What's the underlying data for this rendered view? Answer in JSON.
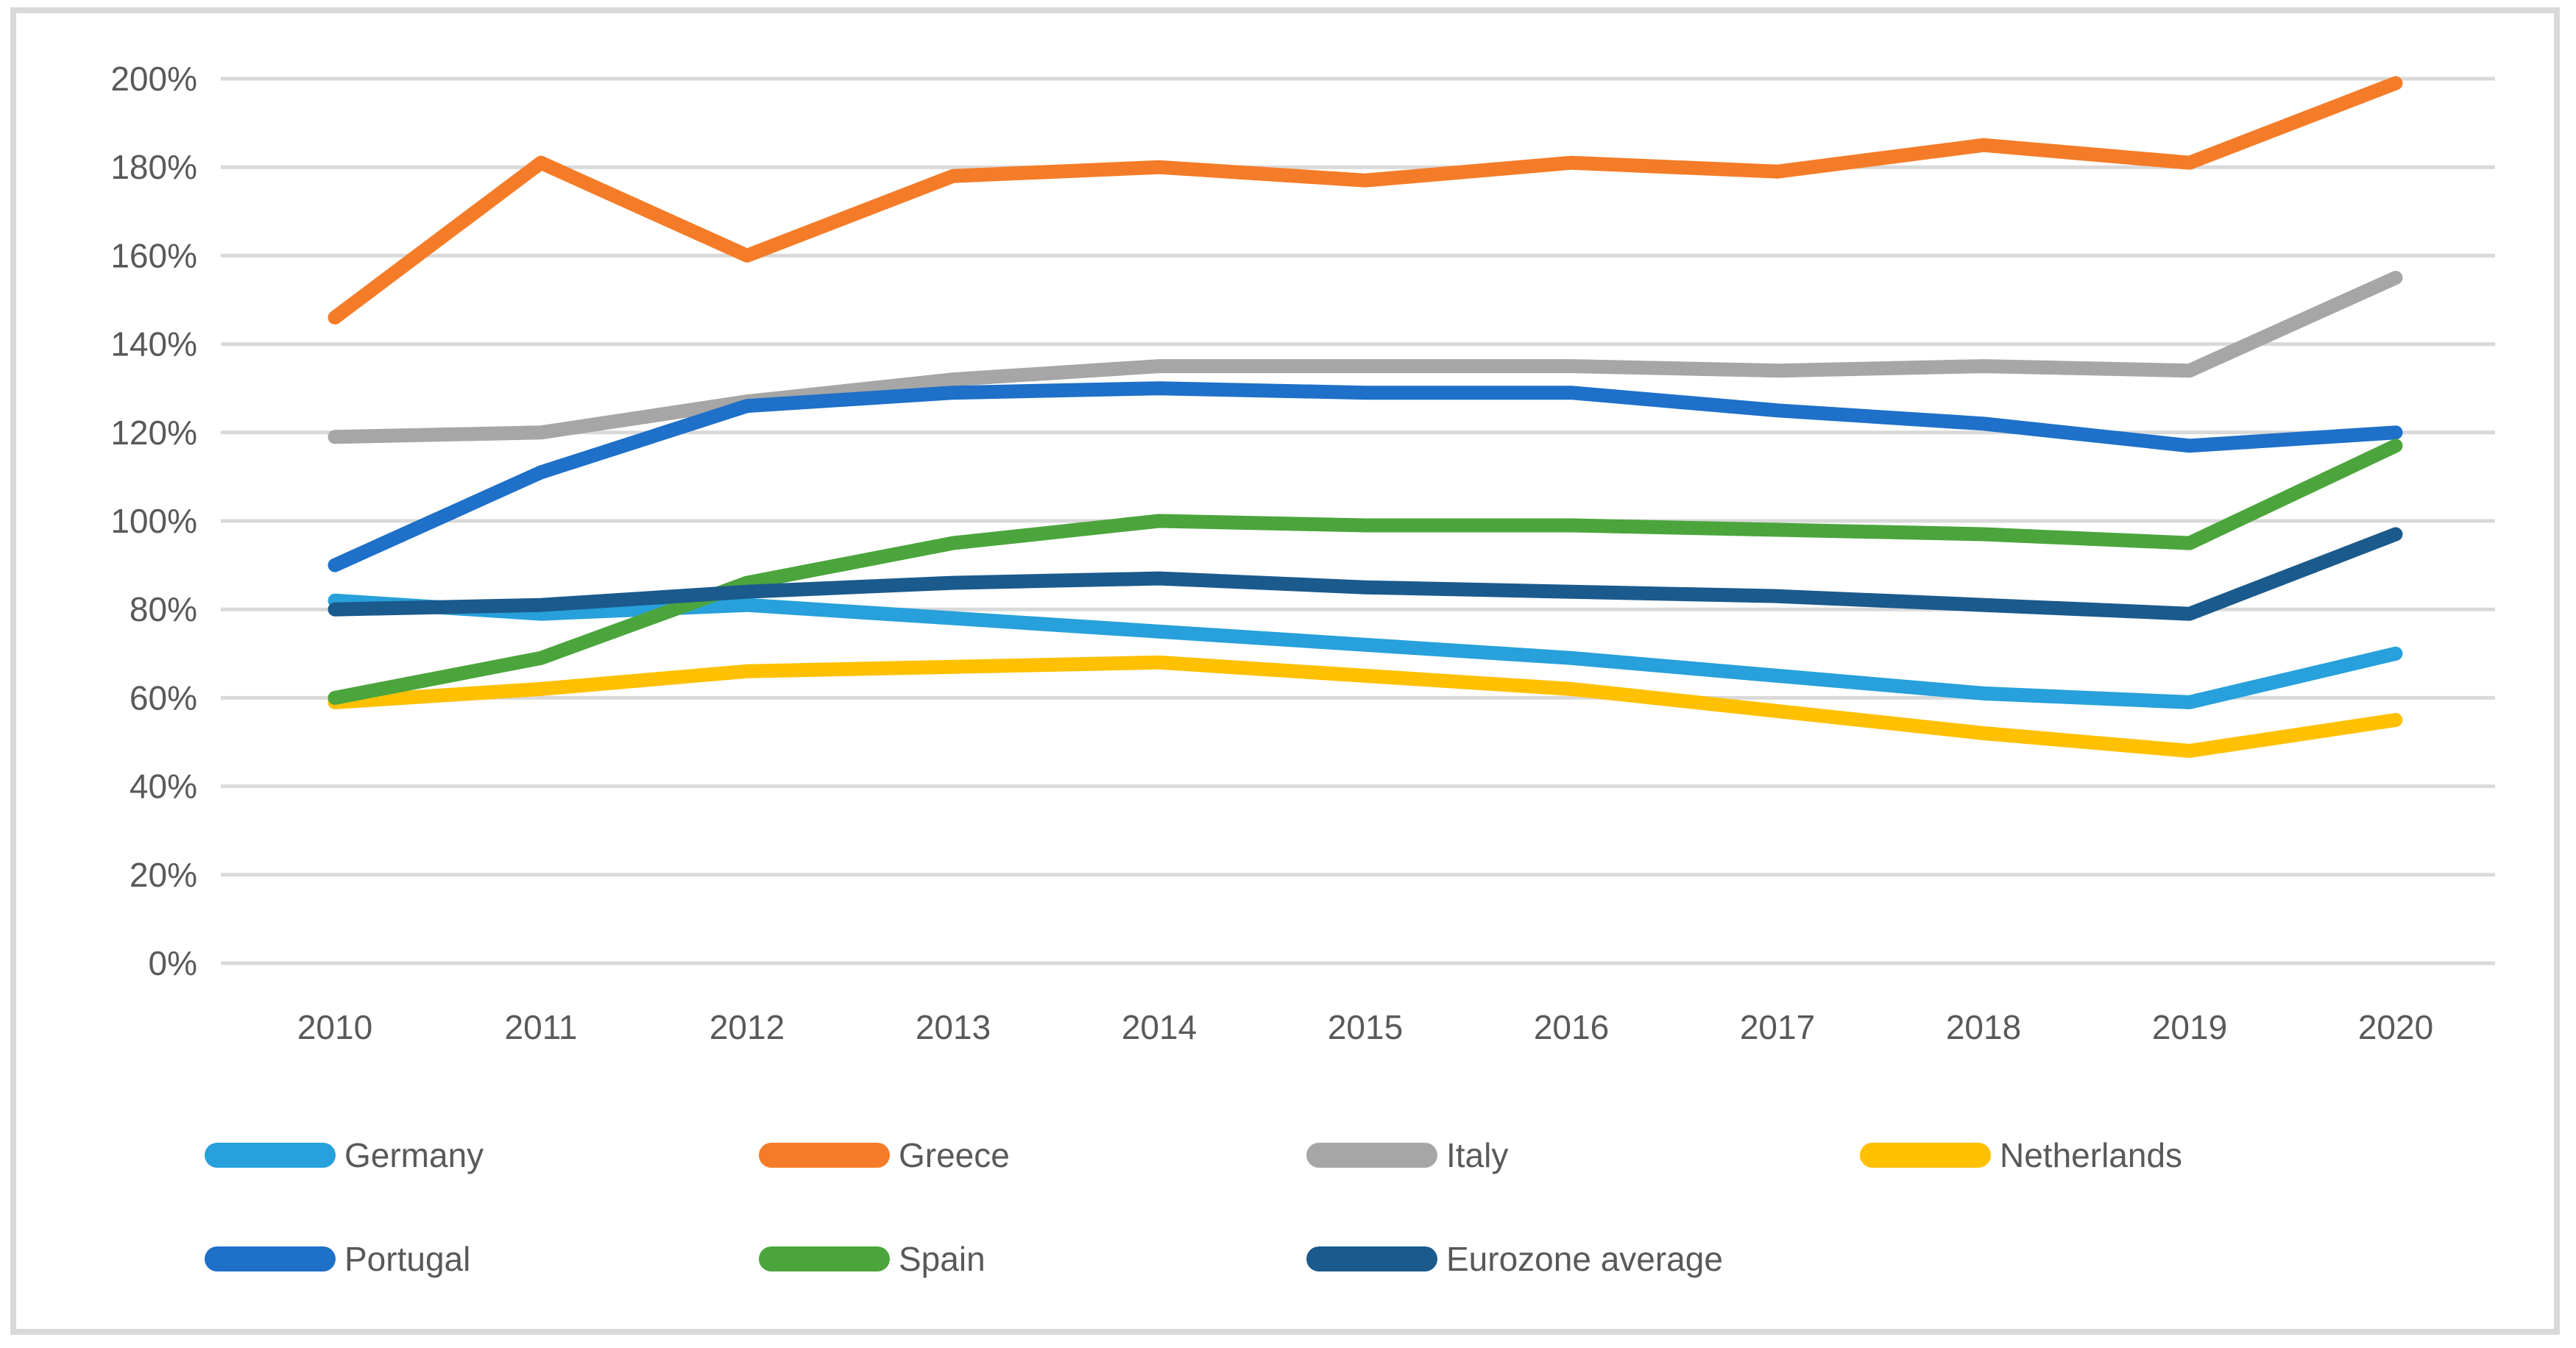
{
  "chart_data": {
    "type": "line",
    "title": "",
    "xlabel": "",
    "ylabel": "",
    "x": [
      "2010",
      "2011",
      "2012",
      "2013",
      "2014",
      "2015",
      "2016",
      "2017",
      "2018",
      "2019",
      "2020"
    ],
    "ylim": [
      0,
      200
    ],
    "ytick_step": 20,
    "ytick_labels": [
      "0%",
      "20%",
      "40%",
      "60%",
      "80%",
      "100%",
      "120%",
      "140%",
      "160%",
      "180%",
      "200%"
    ],
    "grid": true,
    "legend_position": "bottom",
    "series": [
      {
        "name": "Germany",
        "color": "#27A0DB",
        "values": [
          82,
          79,
          81,
          78,
          75,
          72,
          69,
          65,
          61,
          59,
          70
        ]
      },
      {
        "name": "Greece",
        "color": "#F47C28",
        "values": [
          146,
          181,
          160,
          178,
          180,
          177,
          181,
          179,
          185,
          181,
          199
        ]
      },
      {
        "name": "Italy",
        "color": "#A6A6A6",
        "values": [
          119,
          120,
          127,
          132,
          135,
          135,
          135,
          134,
          135,
          134,
          155
        ]
      },
      {
        "name": "Netherlands",
        "color": "#FFC000",
        "values": [
          59,
          62,
          66,
          67,
          68,
          65,
          62,
          57,
          52,
          48,
          55
        ]
      },
      {
        "name": "Portugal",
        "color": "#1E70C8",
        "values": [
          90,
          111,
          126,
          129,
          130,
          129,
          129,
          125,
          122,
          117,
          120
        ]
      },
      {
        "name": "Spain",
        "color": "#4BA53C",
        "values": [
          60,
          69,
          86,
          95,
          100,
          99,
          99,
          98,
          97,
          95,
          117
        ]
      },
      {
        "name": "Eurozone average",
        "color": "#1B5A8C",
        "values": [
          80,
          81,
          84,
          86,
          87,
          85,
          84,
          83,
          81,
          79,
          97
        ]
      }
    ],
    "style": {
      "gridline_color": "#D9D9D9",
      "frame_color": "#D9D9D9",
      "text_color": "#595959",
      "line_width": 19,
      "gridline_width": 5
    }
  }
}
